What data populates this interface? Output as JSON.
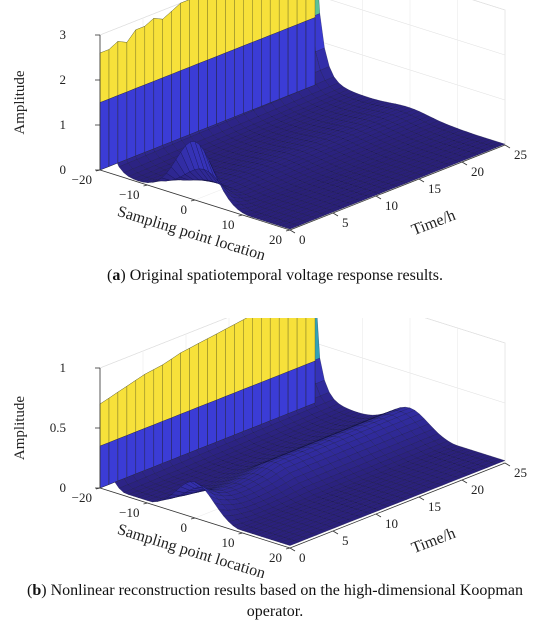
{
  "colors": {
    "high": "#f7e13a",
    "mid": "#2fb9b0",
    "low": "#3b3cd6",
    "floor": "#2a2078",
    "edge": "#10103a"
  },
  "captions": [
    {
      "letter": "a",
      "text": ") Original spatiotemporal voltage response results."
    },
    {
      "letter": "b",
      "text": ") Nonlinear reconstruction results based on the high-dimensional Koopman operator."
    }
  ],
  "chart_data": [
    {
      "type": "surface",
      "title": "",
      "zlabel": "Amplitude",
      "xlabel": "Sampling point location",
      "ylabel": "Time/h",
      "x_ticks": [
        "−20",
        "−10",
        "0",
        "10",
        "20"
      ],
      "y_ticks": [
        "0",
        "5",
        "10",
        "15",
        "20",
        "25"
      ],
      "z_ticks": [
        "0",
        "1",
        "2",
        "3"
      ],
      "xlim": [
        -20,
        20
      ],
      "ylim": [
        0,
        25
      ],
      "zlim": [
        0,
        3
      ],
      "grid": true,
      "edge_wall_peak": [
        2.6,
        2.6,
        2.7,
        2.6,
        2.8,
        2.8,
        2.9,
        2.8,
        2.9,
        3.0,
        3.0,
        3.0,
        2.9,
        3.0,
        3.0,
        3.1,
        3.0,
        3.1,
        3.1,
        3.1,
        3.1,
        3.1,
        3.2,
        3.2
      ],
      "wall_base": 1.5,
      "peak_x": 0,
      "peak_value": 1.3,
      "decay": [
        1.3,
        0.6,
        0.25,
        0.1,
        0.1,
        0.1,
        0.1,
        0.1,
        0.1,
        0.1
      ],
      "tail_level": 0.5
    },
    {
      "type": "surface",
      "title": "",
      "zlabel": "Amplitude",
      "xlabel": "Sampling point location",
      "ylabel": "Time/h",
      "x_ticks": [
        "−20",
        "−10",
        "0",
        "10",
        "20"
      ],
      "y_ticks": [
        "0",
        "5",
        "10",
        "15",
        "20",
        "25"
      ],
      "z_ticks": [
        "0",
        "0.5",
        "1"
      ],
      "xlim": [
        -20,
        20
      ],
      "ylim": [
        0,
        25
      ],
      "zlim": [
        0,
        1
      ],
      "grid": true,
      "edge_wall_peak": [
        0.7,
        0.72,
        0.74,
        0.76,
        0.78,
        0.8,
        0.81,
        0.82,
        0.84,
        0.86,
        0.87,
        0.88,
        0.89,
        0.9,
        0.91,
        0.92,
        0.93,
        0.94,
        0.95,
        0.96,
        0.97,
        0.98,
        0.99,
        1.0
      ],
      "wall_base": 0.35,
      "peak_x": 0,
      "peak_value": 0.3,
      "decay": [
        0.3,
        0.22,
        0.17,
        0.14,
        0.13,
        0.13,
        0.14,
        0.15,
        0.17,
        0.19
      ],
      "tail_level": 0.15
    }
  ]
}
